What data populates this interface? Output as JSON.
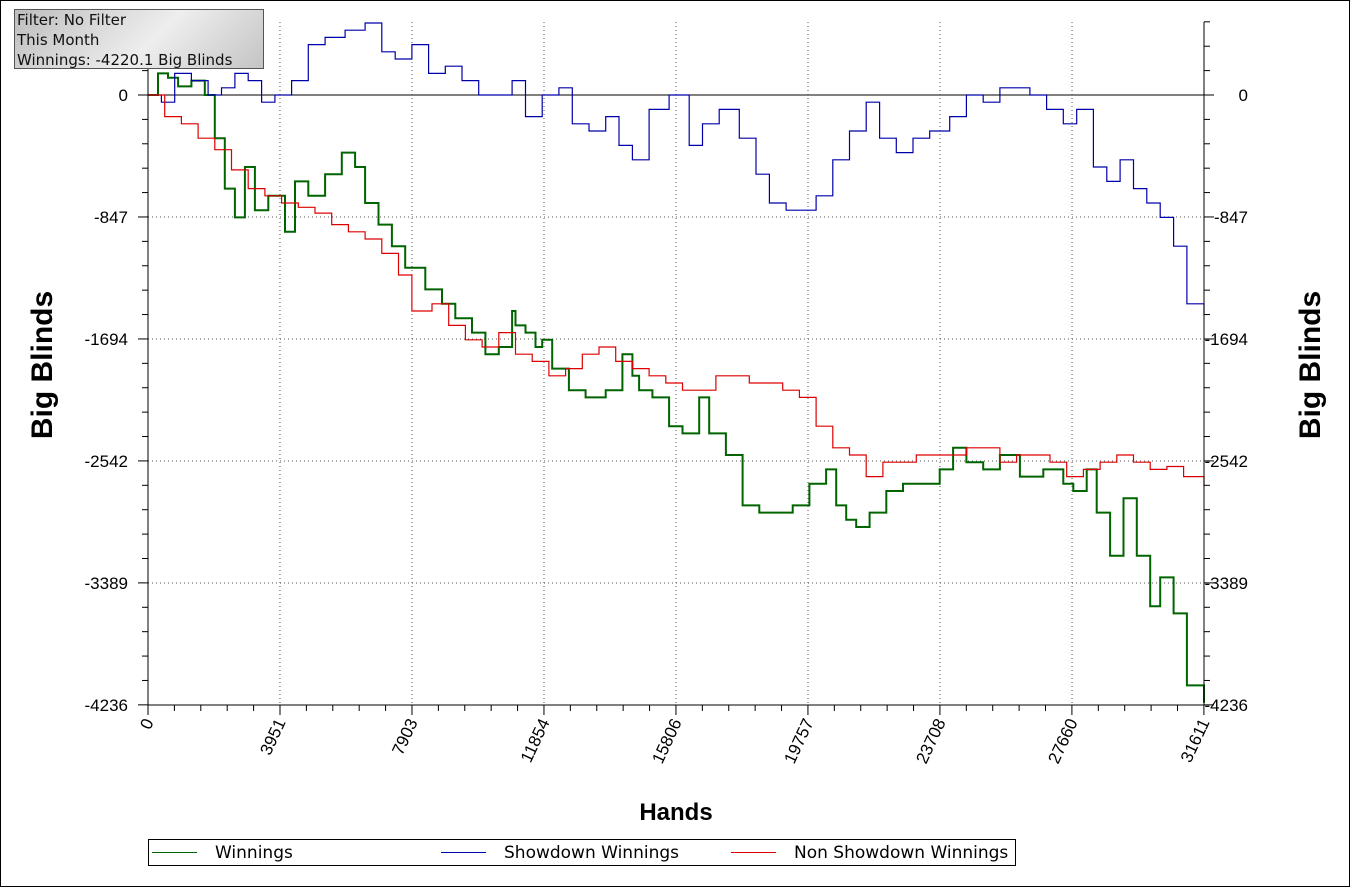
{
  "info": {
    "filter": "Filter: No Filter",
    "period": "This Month",
    "winnings": "Winnings: -4220.1 Big Blinds"
  },
  "chart_data": {
    "type": "line",
    "xlabel": "Hands",
    "ylabel": "Big Blinds",
    "xlim": [
      0,
      31611
    ],
    "ylim": [
      -4236,
      490
    ],
    "x_ticks": [
      0,
      3951,
      7903,
      11854,
      15806,
      19757,
      23708,
      27660,
      31611
    ],
    "y_ticks": [
      0,
      -847,
      -1694,
      -2542,
      -3389,
      -4236
    ],
    "grid": true,
    "legend_position": "bottom",
    "series": [
      {
        "name": "Winnings",
        "color": "#006400",
        "x": [
          0,
          300,
          600,
          900,
          1300,
          1700,
          2000,
          2300,
          2600,
          2900,
          3200,
          3600,
          4100,
          4400,
          4800,
          5300,
          5800,
          6200,
          6500,
          6900,
          7300,
          7700,
          8300,
          8800,
          9200,
          9700,
          10100,
          10500,
          10900,
          11000,
          11300,
          11600,
          11800,
          12100,
          12600,
          13100,
          13700,
          14200,
          14500,
          14700,
          15100,
          15600,
          16000,
          16500,
          16800,
          17300,
          17800,
          18300,
          18800,
          19300,
          19800,
          20300,
          20600,
          20900,
          21200,
          21600,
          22100,
          22600,
          23100,
          23700,
          24100,
          24500,
          25000,
          25500,
          26100,
          26800,
          27400,
          27700,
          28100,
          28400,
          28800,
          29200,
          29600,
          30000,
          30300,
          30700,
          31100,
          31611
        ],
        "values": [
          0,
          150,
          120,
          60,
          100,
          0,
          -300,
          -650,
          -850,
          -500,
          -800,
          -700,
          -950,
          -600,
          -700,
          -550,
          -400,
          -500,
          -750,
          -900,
          -1050,
          -1200,
          -1350,
          -1450,
          -1550,
          -1650,
          -1800,
          -1750,
          -1500,
          -1600,
          -1650,
          -1750,
          -1700,
          -1900,
          -2050,
          -2100,
          -2050,
          -1800,
          -1950,
          -2050,
          -2100,
          -2300,
          -2350,
          -2100,
          -2350,
          -2500,
          -2850,
          -2900,
          -2900,
          -2850,
          -2700,
          -2600,
          -2850,
          -2950,
          -3000,
          -2900,
          -2750,
          -2700,
          -2700,
          -2600,
          -2450,
          -2550,
          -2600,
          -2500,
          -2650,
          -2600,
          -2700,
          -2750,
          -2600,
          -2900,
          -3200,
          -2800,
          -3200,
          -3550,
          -3350,
          -3600,
          -4100,
          -4220
        ]
      },
      {
        "name": "Showdown Winnings",
        "color": "#0000aa",
        "x": [
          0,
          400,
          800,
          1300,
          1800,
          2200,
          2600,
          3000,
          3400,
          3800,
          4300,
          4800,
          5300,
          5900,
          6500,
          7000,
          7400,
          7900,
          8400,
          8900,
          9400,
          9900,
          10400,
          10900,
          11300,
          11800,
          12300,
          12700,
          13200,
          13700,
          14100,
          14500,
          15000,
          15600,
          16200,
          16600,
          17100,
          17700,
          18200,
          18600,
          19100,
          19600,
          20000,
          20500,
          21000,
          21500,
          21900,
          22400,
          22900,
          23400,
          24000,
          24500,
          25000,
          25500,
          26000,
          26400,
          26900,
          27400,
          27800,
          28300,
          28700,
          29100,
          29500,
          29900,
          30300,
          30700,
          31100,
          31611
        ],
        "values": [
          0,
          -50,
          150,
          100,
          0,
          50,
          150,
          100,
          -50,
          0,
          100,
          350,
          400,
          450,
          500,
          300,
          250,
          350,
          150,
          200,
          100,
          0,
          0,
          100,
          -150,
          0,
          50,
          -200,
          -250,
          -150,
          -350,
          -450,
          -100,
          0,
          -350,
          -200,
          -100,
          -300,
          -550,
          -750,
          -800,
          -800,
          -700,
          -450,
          -250,
          -50,
          -300,
          -400,
          -300,
          -250,
          -150,
          0,
          -50,
          50,
          50,
          0,
          -100,
          -200,
          -100,
          -500,
          -600,
          -450,
          -650,
          -750,
          -850,
          -1050,
          -1450,
          -1530
        ]
      },
      {
        "name": "Non Showdown Winnings",
        "color": "#dd0000",
        "x": [
          0,
          500,
          1000,
          1500,
          2000,
          2500,
          3000,
          3500,
          4000,
          4500,
          5000,
          5500,
          6000,
          6500,
          7000,
          7500,
          7900,
          8500,
          9000,
          9500,
          10000,
          10500,
          11000,
          11500,
          12000,
          12500,
          13000,
          13500,
          14000,
          14500,
          15000,
          15500,
          16000,
          16500,
          17000,
          17500,
          18000,
          18500,
          19000,
          19500,
          20000,
          20500,
          21000,
          21500,
          22000,
          22500,
          23000,
          23500,
          24000,
          24500,
          25000,
          25500,
          26000,
          26500,
          27000,
          27500,
          28000,
          28500,
          29000,
          29500,
          30000,
          30500,
          31000,
          31611
        ],
        "values": [
          0,
          -150,
          -200,
          -300,
          -380,
          -520,
          -650,
          -700,
          -750,
          -780,
          -820,
          -900,
          -950,
          -1000,
          -1100,
          -1250,
          -1500,
          -1450,
          -1600,
          -1700,
          -1750,
          -1650,
          -1800,
          -1850,
          -1950,
          -1900,
          -1800,
          -1750,
          -1850,
          -1900,
          -1950,
          -2000,
          -2050,
          -2050,
          -1950,
          -1950,
          -2000,
          -2000,
          -2050,
          -2100,
          -2300,
          -2450,
          -2500,
          -2650,
          -2550,
          -2550,
          -2500,
          -2500,
          -2500,
          -2450,
          -2450,
          -2550,
          -2500,
          -2500,
          -2550,
          -2650,
          -2600,
          -2550,
          -2500,
          -2550,
          -2600,
          -2580,
          -2650,
          -2720
        ]
      }
    ]
  }
}
